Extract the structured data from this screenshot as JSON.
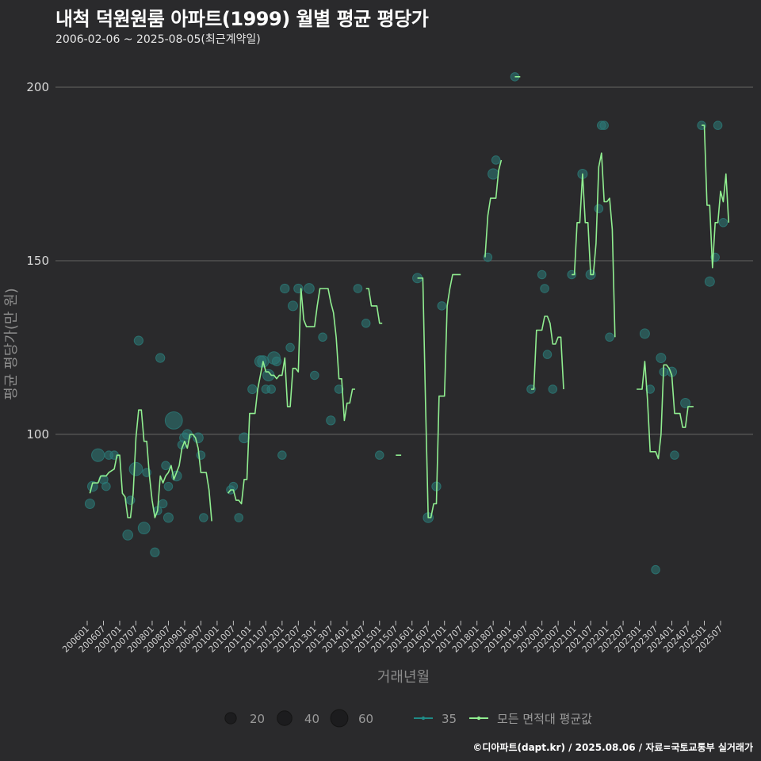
{
  "title": "내척 덕원원룸 아파트(1999) 월별 평균 평당가",
  "subtitle": "2006-02-06 ~ 2025-08-05(최근계약일)",
  "caption": "©디아파트(dapt.kr) / 2025.08.06 / 자료=국토교통부 실거래가",
  "colors": {
    "background": "#2a2a2c",
    "grid": "#5a5a5a",
    "line": "#90ee90",
    "point": "#2b7a78"
  },
  "chart_data": {
    "type": "line",
    "xlabel": "거래년월",
    "ylabel": "평균 평당가(만 원)",
    "ylim": [
      47,
      221
    ],
    "yticks": [
      100,
      150,
      200
    ],
    "grid": "horizontal",
    "legend_position": "bottom",
    "x_ticks": [
      "200601",
      "200607",
      "200701",
      "200707",
      "200801",
      "200807",
      "200901",
      "200907",
      "201001",
      "201007",
      "201101",
      "201107",
      "201201",
      "201207",
      "201301",
      "201307",
      "201401",
      "201407",
      "201501",
      "201507",
      "201601",
      "201607",
      "201701",
      "201707",
      "201801",
      "201807",
      "201901",
      "201907",
      "202001",
      "202007",
      "202101",
      "202107",
      "202201",
      "202207",
      "202301",
      "202307",
      "202401",
      "202407",
      "202501",
      "202507"
    ],
    "legend": {
      "size_entries": [
        {
          "label": "20",
          "value": 20
        },
        {
          "label": "40",
          "value": 40
        },
        {
          "label": "60",
          "value": 60
        }
      ],
      "area_entry": "35",
      "line_entry": "모든 면적대 평균값"
    },
    "line_segments": [
      [
        [
          "2006-02",
          83
        ],
        [
          "2006-03",
          86
        ],
        [
          "2006-05",
          86
        ],
        [
          "2006-06",
          88
        ],
        [
          "2006-08",
          88
        ],
        [
          "2006-09",
          89
        ],
        [
          "2006-11",
          90
        ],
        [
          "2006-12",
          94
        ],
        [
          "2007-01",
          94
        ],
        [
          "2007-02",
          83
        ],
        [
          "2007-03",
          82
        ],
        [
          "2007-04",
          76
        ],
        [
          "2007-05",
          76
        ],
        [
          "2007-06",
          83
        ],
        [
          "2007-07",
          99
        ],
        [
          "2007-08",
          107
        ],
        [
          "2007-09",
          107
        ],
        [
          "2007-10",
          98
        ],
        [
          "2007-11",
          98
        ],
        [
          "2007-12",
          88
        ],
        [
          "2008-01",
          81
        ],
        [
          "2008-02",
          76
        ],
        [
          "2008-03",
          78
        ],
        [
          "2008-04",
          88
        ],
        [
          "2008-05",
          86
        ],
        [
          "2008-06",
          88
        ],
        [
          "2008-07",
          89
        ],
        [
          "2008-08",
          91
        ],
        [
          "2008-09",
          87
        ],
        [
          "2008-10",
          89
        ],
        [
          "2008-11",
          91
        ],
        [
          "2008-12",
          96
        ],
        [
          "2009-01",
          98
        ],
        [
          "2009-02",
          96
        ],
        [
          "2009-03",
          100
        ],
        [
          "2009-04",
          100
        ],
        [
          "2009-05",
          99
        ],
        [
          "2009-06",
          96
        ],
        [
          "2009-07",
          89
        ],
        [
          "2009-08",
          89
        ],
        [
          "2009-09",
          89
        ],
        [
          "2009-10",
          84
        ],
        [
          "2009-11",
          75
        ]
      ],
      [
        [
          "2010-05",
          83
        ],
        [
          "2010-06",
          84
        ],
        [
          "2010-07",
          84
        ],
        [
          "2010-08",
          81
        ],
        [
          "2010-09",
          81
        ],
        [
          "2010-10",
          80
        ],
        [
          "2010-11",
          87
        ],
        [
          "2010-12",
          87
        ],
        [
          "2011-01",
          106
        ],
        [
          "2011-02",
          106
        ],
        [
          "2011-03",
          106
        ],
        [
          "2011-04",
          113
        ],
        [
          "2011-05",
          117
        ],
        [
          "2011-06",
          121
        ],
        [
          "2011-07",
          118
        ],
        [
          "2011-08",
          118
        ],
        [
          "2011-09",
          117
        ],
        [
          "2011-10",
          117
        ],
        [
          "2011-11",
          116
        ],
        [
          "2011-12",
          117
        ],
        [
          "2012-01",
          117
        ],
        [
          "2012-02",
          122
        ],
        [
          "2012-03",
          108
        ],
        [
          "2012-04",
          108
        ],
        [
          "2012-05",
          119
        ],
        [
          "2012-06",
          119
        ],
        [
          "2012-07",
          118
        ],
        [
          "2012-08",
          142
        ],
        [
          "2012-09",
          133
        ],
        [
          "2012-10",
          131
        ],
        [
          "2012-11",
          131
        ],
        [
          "2012-12",
          131
        ],
        [
          "2013-01",
          131
        ],
        [
          "2013-02",
          137
        ],
        [
          "2013-03",
          142
        ],
        [
          "2013-04",
          142
        ],
        [
          "2013-05",
          142
        ],
        [
          "2013-06",
          142
        ],
        [
          "2013-07",
          138
        ],
        [
          "2013-08",
          135
        ],
        [
          "2013-09",
          128
        ],
        [
          "2013-10",
          116
        ],
        [
          "2013-11",
          116
        ],
        [
          "2013-12",
          104
        ],
        [
          "2014-01",
          109
        ],
        [
          "2014-02",
          109
        ],
        [
          "2014-03",
          113
        ],
        [
          "2014-04",
          113
        ]
      ],
      [
        [
          "2014-08",
          142
        ],
        [
          "2014-09",
          142
        ],
        [
          "2014-10",
          137
        ],
        [
          "2014-11",
          137
        ],
        [
          "2014-12",
          137
        ],
        [
          "2015-01",
          132
        ],
        [
          "2015-02",
          132
        ]
      ],
      [
        [
          "2015-07",
          94
        ],
        [
          "2015-08",
          94
        ],
        [
          "2015-09",
          94
        ]
      ],
      [
        [
          "2016-03",
          145
        ],
        [
          "2016-04",
          145
        ],
        [
          "2016-05",
          145
        ],
        [
          "2016-06",
          109
        ],
        [
          "2016-07",
          76
        ],
        [
          "2016-08",
          76
        ],
        [
          "2016-09",
          80
        ],
        [
          "2016-10",
          80
        ],
        [
          "2016-11",
          111
        ],
        [
          "2016-12",
          111
        ],
        [
          "2017-01",
          111
        ],
        [
          "2017-02",
          137
        ],
        [
          "2017-03",
          142
        ],
        [
          "2017-04",
          146
        ],
        [
          "2017-05",
          146
        ],
        [
          "2017-06",
          146
        ],
        [
          "2017-07",
          146
        ]
      ],
      [
        [
          "2018-04",
          151
        ],
        [
          "2018-05",
          163
        ],
        [
          "2018-06",
          168
        ],
        [
          "2018-07",
          168
        ],
        [
          "2018-08",
          168
        ],
        [
          "2018-09",
          176
        ],
        [
          "2018-10",
          179
        ]
      ],
      [
        [
          "2019-03",
          203
        ],
        [
          "2019-04",
          203
        ],
        [
          "2019-05",
          203
        ]
      ],
      [
        [
          "2019-09",
          113
        ],
        [
          "2019-10",
          113
        ],
        [
          "2019-11",
          130
        ],
        [
          "2019-12",
          130
        ],
        [
          "2020-01",
          130
        ],
        [
          "2020-02",
          134
        ],
        [
          "2020-03",
          134
        ],
        [
          "2020-04",
          132
        ],
        [
          "2020-05",
          126
        ],
        [
          "2020-06",
          126
        ],
        [
          "2020-07",
          128
        ],
        [
          "2020-08",
          128
        ],
        [
          "2020-09",
          113
        ]
      ],
      [
        [
          "2020-12",
          146
        ],
        [
          "2021-01",
          146
        ],
        [
          "2021-02",
          161
        ],
        [
          "2021-03",
          161
        ],
        [
          "2021-04",
          175
        ],
        [
          "2021-05",
          161
        ],
        [
          "2021-06",
          161
        ],
        [
          "2021-07",
          146
        ],
        [
          "2021-08",
          146
        ],
        [
          "2021-09",
          155
        ],
        [
          "2021-10",
          177
        ],
        [
          "2021-11",
          181
        ],
        [
          "2021-12",
          167
        ],
        [
          "2022-01",
          167
        ],
        [
          "2022-02",
          168
        ],
        [
          "2022-03",
          159
        ],
        [
          "2022-04",
          128
        ]
      ],
      [
        [
          "2022-12",
          113
        ],
        [
          "2023-01",
          113
        ],
        [
          "2023-02",
          113
        ],
        [
          "2023-03",
          121
        ],
        [
          "2023-04",
          110
        ],
        [
          "2023-05",
          95
        ],
        [
          "2023-06",
          95
        ],
        [
          "2023-07",
          95
        ],
        [
          "2023-08",
          93
        ],
        [
          "2023-09",
          100
        ],
        [
          "2023-10",
          120
        ],
        [
          "2023-11",
          120
        ],
        [
          "2023-12",
          119
        ],
        [
          "2024-01",
          117
        ],
        [
          "2024-02",
          106
        ],
        [
          "2024-03",
          106
        ],
        [
          "2024-04",
          106
        ],
        [
          "2024-05",
          102
        ],
        [
          "2024-06",
          102
        ],
        [
          "2024-07",
          108
        ],
        [
          "2024-08",
          108
        ],
        [
          "2024-09",
          108
        ]
      ],
      [
        [
          "2024-12",
          189
        ],
        [
          "2025-01",
          189
        ],
        [
          "2025-02",
          166
        ],
        [
          "2025-03",
          166
        ],
        [
          "2025-04",
          148
        ],
        [
          "2025-05",
          161
        ],
        [
          "2025-06",
          161
        ],
        [
          "2025-07",
          170
        ],
        [
          "2025-08",
          167
        ],
        [
          "2025-09",
          175
        ],
        [
          "2025-10",
          161
        ]
      ]
    ],
    "scatter_points": [
      [
        "2006-02",
        80,
        12
      ],
      [
        "2006-03",
        85,
        14
      ],
      [
        "2006-05",
        94,
        28
      ],
      [
        "2006-07",
        87,
        10
      ],
      [
        "2006-08",
        85,
        8
      ],
      [
        "2006-09",
        94,
        8
      ],
      [
        "2006-11",
        94,
        8
      ],
      [
        "2007-04",
        71,
        14
      ],
      [
        "2007-05",
        81,
        8
      ],
      [
        "2007-07",
        90,
        30
      ],
      [
        "2007-08",
        127,
        10
      ],
      [
        "2007-10",
        73,
        22
      ],
      [
        "2007-11",
        89,
        8
      ],
      [
        "2008-02",
        66,
        10
      ],
      [
        "2008-03",
        78,
        8
      ],
      [
        "2008-04",
        122,
        10
      ],
      [
        "2008-05",
        80,
        8
      ],
      [
        "2008-06",
        91,
        8
      ],
      [
        "2008-07",
        76,
        12
      ],
      [
        "2008-07",
        85,
        8
      ],
      [
        "2008-09",
        104,
        60
      ],
      [
        "2008-10",
        88,
        14
      ],
      [
        "2008-12",
        97,
        8
      ],
      [
        "2009-01",
        99,
        14
      ],
      [
        "2009-02",
        100,
        12
      ],
      [
        "2009-06",
        99,
        14
      ],
      [
        "2009-07",
        94,
        8
      ],
      [
        "2009-08",
        76,
        8
      ],
      [
        "2010-06",
        84,
        8
      ],
      [
        "2010-07",
        85,
        8
      ],
      [
        "2010-09",
        76,
        8
      ],
      [
        "2010-11",
        99,
        14
      ],
      [
        "2011-02",
        113,
        10
      ],
      [
        "2011-05",
        121,
        20
      ],
      [
        "2011-06",
        121,
        20
      ],
      [
        "2011-07",
        113,
        8
      ],
      [
        "2011-08",
        117,
        20
      ],
      [
        "2011-09",
        113,
        8
      ],
      [
        "2011-10",
        122,
        26
      ],
      [
        "2011-11",
        121,
        10
      ],
      [
        "2012-01",
        94,
        8
      ],
      [
        "2012-02",
        142,
        10
      ],
      [
        "2012-04",
        125,
        8
      ],
      [
        "2012-05",
        137,
        12
      ],
      [
        "2012-07",
        142,
        10
      ],
      [
        "2012-11",
        142,
        14
      ],
      [
        "2013-01",
        117,
        8
      ],
      [
        "2013-04",
        128,
        8
      ],
      [
        "2013-07",
        104,
        10
      ],
      [
        "2013-10",
        113,
        8
      ],
      [
        "2014-05",
        142,
        8
      ],
      [
        "2014-08",
        132,
        8
      ],
      [
        "2015-01",
        94,
        8
      ],
      [
        "2016-03",
        145,
        12
      ],
      [
        "2016-07",
        76,
        14
      ],
      [
        "2016-10",
        85,
        10
      ],
      [
        "2016-12",
        137,
        8
      ],
      [
        "2018-05",
        151,
        8
      ],
      [
        "2018-07",
        175,
        16
      ],
      [
        "2018-08",
        179,
        8
      ],
      [
        "2019-03",
        203,
        8
      ],
      [
        "2019-09",
        113,
        8
      ],
      [
        "2020-01",
        146,
        8
      ],
      [
        "2020-02",
        142,
        8
      ],
      [
        "2020-03",
        123,
        8
      ],
      [
        "2020-05",
        113,
        8
      ],
      [
        "2020-12",
        146,
        8
      ],
      [
        "2021-04",
        175,
        12
      ],
      [
        "2021-07",
        146,
        12
      ],
      [
        "2021-10",
        165,
        8
      ],
      [
        "2021-11",
        189,
        8
      ],
      [
        "2021-12",
        189,
        8
      ],
      [
        "2022-02",
        128,
        8
      ],
      [
        "2023-03",
        129,
        12
      ],
      [
        "2023-05",
        113,
        8
      ],
      [
        "2023-07",
        61,
        8
      ],
      [
        "2023-09",
        122,
        12
      ],
      [
        "2023-10",
        118,
        8
      ],
      [
        "2024-01",
        118,
        12
      ],
      [
        "2024-02",
        94,
        8
      ],
      [
        "2024-06",
        109,
        12
      ],
      [
        "2024-12",
        189,
        8
      ],
      [
        "2025-03",
        144,
        12
      ],
      [
        "2025-05",
        151,
        8
      ],
      [
        "2025-06",
        189,
        8
      ],
      [
        "2025-08",
        161,
        8
      ]
    ]
  }
}
